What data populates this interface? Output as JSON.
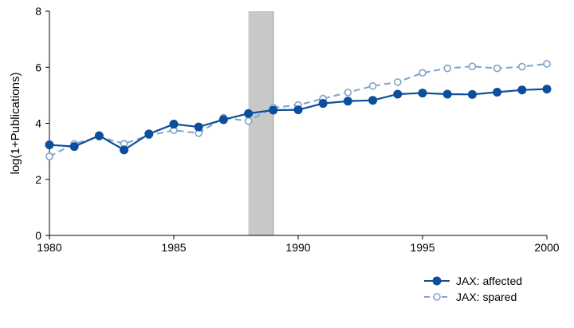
{
  "chart_data": {
    "type": "line",
    "xlabel": "",
    "ylabel": "log(1+Publications)",
    "xlim": [
      1980,
      2000
    ],
    "ylim": [
      0,
      8
    ],
    "xticks": [
      1980,
      1985,
      1990,
      1995,
      2000
    ],
    "yticks": [
      0,
      2,
      4,
      6,
      8
    ],
    "grid": false,
    "legend_position": "bottom-right",
    "shaded_region": {
      "x_start": 1988,
      "x_end": 1989,
      "color": "#c8c8c8"
    },
    "x": [
      1980,
      1981,
      1982,
      1983,
      1984,
      1985,
      1986,
      1987,
      1988,
      1989,
      1990,
      1991,
      1992,
      1993,
      1994,
      1995,
      1996,
      1997,
      1998,
      1999,
      2000
    ],
    "series": [
      {
        "name": "JAX: affected",
        "style": "solid-filled",
        "color": "#0b4f9c",
        "values": [
          3.23,
          3.17,
          3.56,
          3.05,
          3.62,
          3.97,
          3.87,
          4.13,
          4.35,
          4.47,
          4.48,
          4.71,
          4.79,
          4.82,
          5.04,
          5.08,
          5.04,
          5.03,
          5.11,
          5.19,
          5.22
        ]
      },
      {
        "name": "JAX: spared",
        "style": "dashed-hollow",
        "color": "#7fa3c9",
        "values": [
          2.82,
          3.27,
          3.52,
          3.27,
          3.57,
          3.75,
          3.65,
          4.2,
          4.08,
          4.56,
          4.65,
          4.88,
          5.1,
          5.33,
          5.47,
          5.8,
          5.96,
          6.03,
          5.96,
          6.02,
          6.12
        ]
      }
    ]
  }
}
